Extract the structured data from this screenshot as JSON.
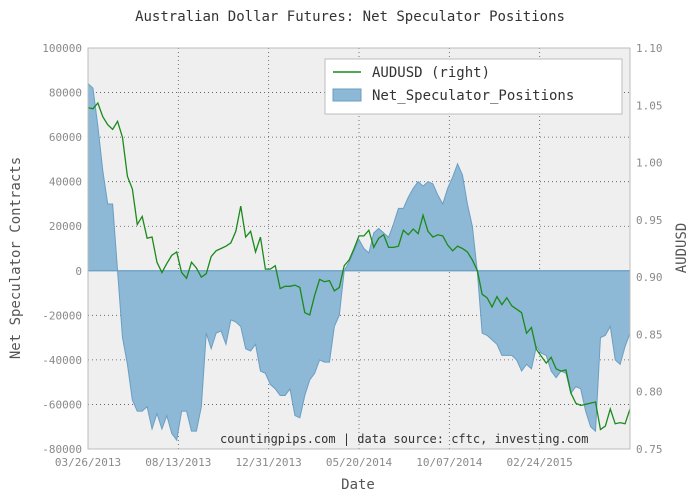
{
  "chart_data": {
    "type": "area",
    "title": "Australian Dollar Futures: Net Speculator Positions",
    "xlabel": "Date",
    "ylabel": "Net Speculator Contracts",
    "ylabel_right": "AUDUSD",
    "ylim": [
      -80000,
      100000
    ],
    "ylim_right": [
      0.75,
      1.1
    ],
    "yticks": [
      "100000",
      "80000",
      "60000",
      "40000",
      "20000",
      "0",
      "-20000",
      "-40000",
      "-60000",
      "-80000"
    ],
    "yticks_right": [
      "1.10",
      "1.05",
      "1.00",
      "0.95",
      "0.90",
      "0.85",
      "0.80",
      "0.75"
    ],
    "xticks": [
      "03/26/2013",
      "08/13/2013",
      "12/31/2013",
      "05/20/2014",
      "10/07/2014",
      "02/24/2015"
    ],
    "grid": true,
    "legend_position": "top-right",
    "annotation": "countingpips.com | data source: cftc, investing.com",
    "series": [
      {
        "name": "Net_Speculator_Positions",
        "kind": "area",
        "axis": "left",
        "color": "#8db9d6",
        "values": [
          84000,
          82000,
          65000,
          45000,
          30000,
          30000,
          0,
          -30000,
          -42000,
          -58000,
          -63000,
          -63000,
          -61000,
          -71000,
          -64000,
          -71000,
          -65000,
          -73000,
          -76000,
          -63000,
          -63000,
          -72000,
          -72000,
          -61000,
          -28000,
          -35000,
          -28000,
          -27000,
          -33000,
          -22000,
          -23000,
          -25000,
          -35000,
          -36000,
          -33000,
          -45000,
          -46000,
          -51000,
          -53000,
          -56000,
          -56000,
          -53000,
          -65000,
          -66000,
          -56000,
          -49000,
          -46000,
          -40000,
          -41000,
          -41000,
          -25000,
          -20000,
          0,
          4000,
          9000,
          14000,
          10000,
          8000,
          17000,
          19000,
          17000,
          15000,
          21000,
          28000,
          28000,
          33000,
          37000,
          40000,
          38000,
          40000,
          39000,
          34000,
          30000,
          37000,
          42000,
          48000,
          43000,
          30000,
          20000,
          0,
          -28000,
          -29000,
          -31000,
          -33000,
          -38000,
          -38000,
          -38000,
          -40000,
          -45000,
          -42000,
          -44000,
          -34000,
          -37000,
          -38000,
          -45000,
          -48000,
          -45000,
          -46000,
          -55000,
          -52000,
          -53000,
          -63000,
          -70000,
          -72000,
          -30000,
          -29000,
          -25000,
          -40000,
          -42000,
          -34000,
          -28000
        ]
      },
      {
        "name": "AUDUSD (right)",
        "kind": "line",
        "axis": "right",
        "color": "#1a8a1a",
        "values": [
          1.048,
          1.047,
          1.052,
          1.04,
          1.033,
          1.029,
          1.036,
          1.022,
          0.988,
          0.977,
          0.946,
          0.953,
          0.934,
          0.935,
          0.913,
          0.904,
          0.912,
          0.919,
          0.922,
          0.904,
          0.899,
          0.913,
          0.908,
          0.9,
          0.903,
          0.918,
          0.923,
          0.925,
          0.927,
          0.93,
          0.94,
          0.962,
          0.935,
          0.94,
          0.922,
          0.935,
          0.907,
          0.907,
          0.91,
          0.89,
          0.892,
          0.892,
          0.893,
          0.891,
          0.869,
          0.867,
          0.884,
          0.898,
          0.896,
          0.897,
          0.888,
          0.891,
          0.91,
          0.915,
          0.925,
          0.936,
          0.936,
          0.941,
          0.926,
          0.934,
          0.937,
          0.926,
          0.926,
          0.927,
          0.941,
          0.937,
          0.942,
          0.938,
          0.954,
          0.94,
          0.935,
          0.937,
          0.936,
          0.928,
          0.923,
          0.927,
          0.925,
          0.922,
          0.915,
          0.906,
          0.885,
          0.882,
          0.874,
          0.883,
          0.876,
          0.882,
          0.875,
          0.872,
          0.869,
          0.851,
          0.856,
          0.837,
          0.831,
          0.825,
          0.83,
          0.82,
          0.818,
          0.819,
          0.799,
          0.79,
          0.788,
          0.789,
          0.79,
          0.791,
          0.767,
          0.77,
          0.785,
          0.772,
          0.773,
          0.772,
          0.785
        ]
      }
    ]
  }
}
